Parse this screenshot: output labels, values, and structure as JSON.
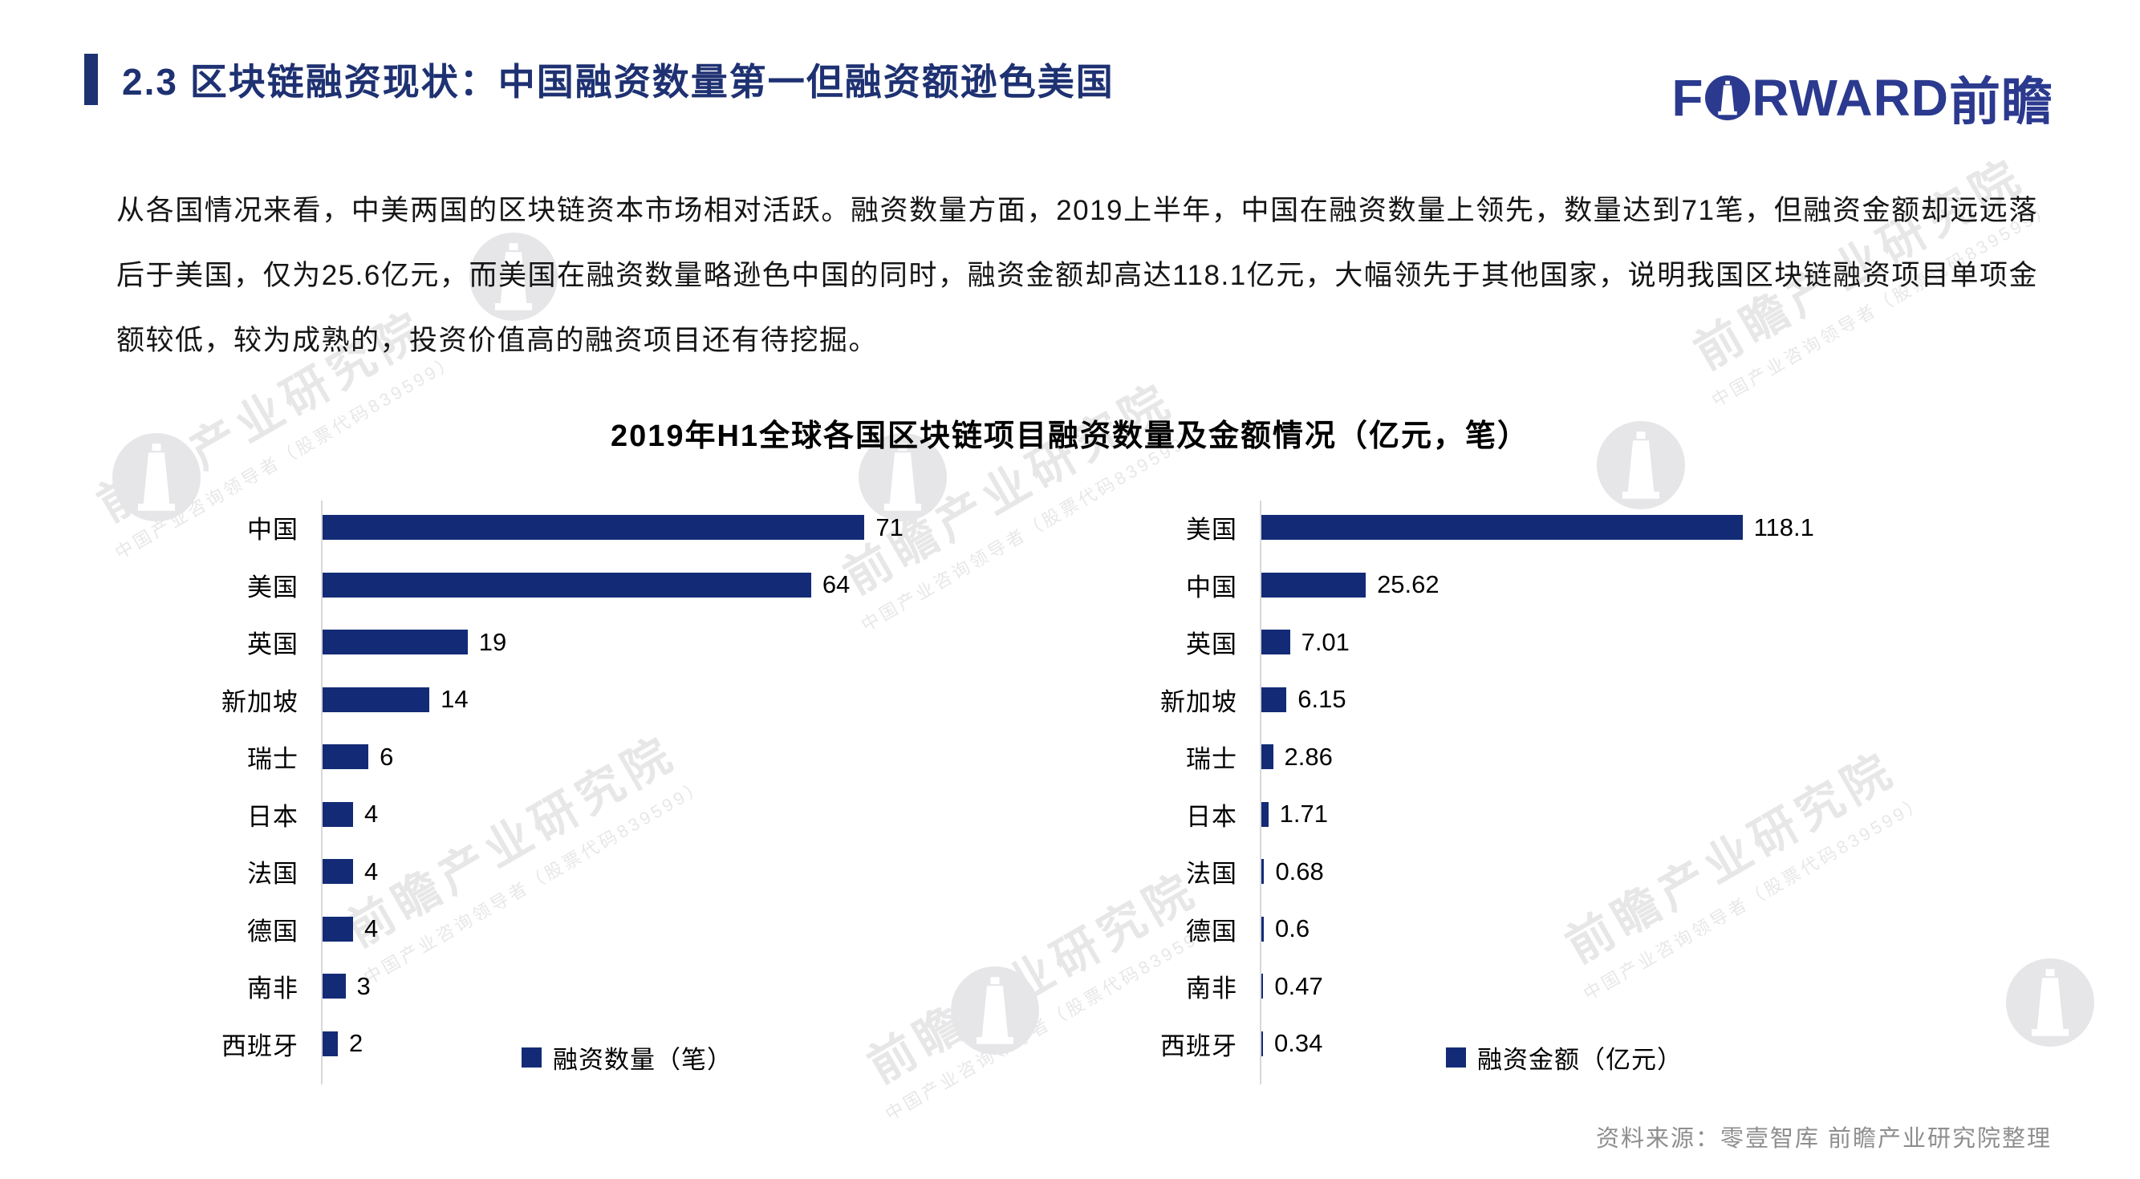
{
  "header": {
    "title": "2.3 区块链融资现状：中国融资数量第一但融资额逊色美国",
    "logo": {
      "latin_prefix": "F",
      "latin_suffix": "RWARD",
      "cn": "前瞻",
      "o_icon": "lighthouse-circle"
    }
  },
  "body": {
    "paragraph": "从各国情况来看，中美两国的区块链资本市场相对活跃。融资数量方面，2019上半年，中国在融资数量上领先，数量达到71笔，但融资金额却远远落后于美国，仅为25.6亿元，而美国在融资数量略逊色中国的同时，融资金额却高达118.1亿元，大幅领先于其他国家，说明我国区块链融资项目单项金额较低，较为成熟的，投资价值高的融资项目还有待挖掘。"
  },
  "charts_title": "2019年H1全球各国区块链项目融资数量及金额情况（亿元，笔）",
  "chart_data": [
    {
      "type": "bar",
      "orientation": "horizontal",
      "title": "2019年H1全球各国区块链项目融资数量及金额情况（亿元，笔）",
      "categories": [
        "中国",
        "美国",
        "英国",
        "新加坡",
        "瑞士",
        "日本",
        "法国",
        "德国",
        "南非",
        "西班牙"
      ],
      "values": [
        71,
        64,
        19,
        14,
        6,
        4,
        4,
        4,
        3,
        2
      ],
      "legend": "融资数量（笔）",
      "xlabel": "",
      "ylabel": "",
      "xlim": [
        0,
        78
      ],
      "grid": false,
      "legend_position": "bottom-right",
      "bar_color": "#132b76"
    },
    {
      "type": "bar",
      "orientation": "horizontal",
      "title": "2019年H1全球各国区块链项目融资数量及金额情况（亿元，笔）",
      "categories": [
        "美国",
        "中国",
        "英国",
        "新加坡",
        "瑞士",
        "日本",
        "法国",
        "德国",
        "南非",
        "西班牙"
      ],
      "values": [
        118.1,
        25.62,
        7.01,
        6.15,
        2.86,
        1.71,
        0.68,
        0.6,
        0.47,
        0.34
      ],
      "legend": "融资金额（亿元）",
      "xlabel": "",
      "ylabel": "",
      "xlim": [
        0,
        130
      ],
      "grid": false,
      "legend_position": "bottom-right",
      "bar_color": "#132b76"
    }
  ],
  "footer": {
    "source": "资料来源：零壹智库 前瞻产业研究院整理"
  },
  "watermark": {
    "line1": "前瞻产业研究院",
    "line2": "中国产业咨询领导者（股票代码839599）"
  },
  "colors": {
    "accent": "#1e3172",
    "bar": "#132b76",
    "axis_line": "#d8d8d8",
    "logo": "#2b3a8f",
    "source_text": "#8e8e8e"
  }
}
